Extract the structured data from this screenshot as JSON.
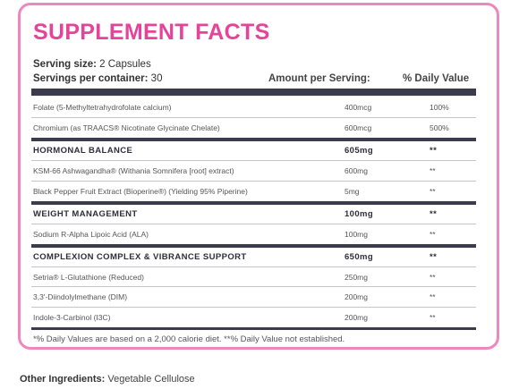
{
  "title": "SUPPLEMENT FACTS",
  "serving_size_label": "Serving size:",
  "serving_size_value": "2 Capsules",
  "servings_label": "Servings per container:",
  "servings_value": "30",
  "col_amount": "Amount per Serving:",
  "col_dv": "% Daily Value",
  "rows": [
    {
      "name": "Folate (5-Methyltetrahydrofolate calcium)",
      "amount": "400mcg",
      "dv": "100%"
    },
    {
      "name": "Chromium (as TRAACS® Nicotinate Glycinate Chelate)",
      "amount": "600mcg",
      "dv": "500%"
    }
  ],
  "sections": [
    {
      "name": "HORMONAL BALANCE",
      "amount": "605mg",
      "dv": "**",
      "items": [
        {
          "name": "KSM-66 Ashwagandha® (Withania Somnifera [root] extract)",
          "amount": "600mg",
          "dv": "**"
        },
        {
          "name": "Black Pepper Fruit Extract (Bioperine®) (Yielding 95% Piperine)",
          "amount": "5mg",
          "dv": "**"
        }
      ]
    },
    {
      "name": "WEIGHT MANAGEMENT",
      "amount": "100mg",
      "dv": "**",
      "items": [
        {
          "name": "Sodium R-Alpha Lipoic Acid (ALA)",
          "amount": "100mg",
          "dv": "**"
        }
      ]
    },
    {
      "name": "COMPLEXION COMPLEX & VIBRANCE SUPPORT",
      "amount": "650mg",
      "dv": "**",
      "items": [
        {
          "name": "Setria® L-Glutathione (Reduced)",
          "amount": "250mg",
          "dv": "**"
        },
        {
          "name": "3,3'-Diindolylmethane (DIM)",
          "amount": "200mg",
          "dv": "**"
        },
        {
          "name": "Indole-3-Carbinol (I3C)",
          "amount": "200mg",
          "dv": "**"
        }
      ]
    }
  ],
  "footnote": "*% Daily Values are based on a 2,000 calorie diet. **% Daily Value not established.",
  "other_label": "Other Ingredients:",
  "other_value": "Vegetable Cellulose",
  "colors": {
    "accent": "#e6439a",
    "border": "#ee86c0",
    "bar": "#3b3b4d"
  }
}
